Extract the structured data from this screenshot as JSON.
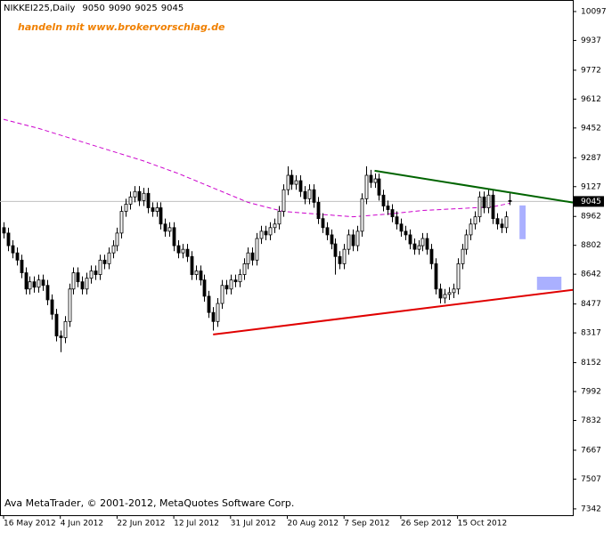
{
  "chart_data": {
    "type": "candlestick",
    "symbol": "NIKKEI225,Daily",
    "watermark": "handeln mit www.brokervorschlag.de",
    "footer": "Ava MetaTrader, © 2001-2012, MetaQuotes Software Corp.",
    "categories": [
      "16 May 2012",
      null,
      null,
      null,
      null,
      null,
      null,
      null,
      null,
      null,
      null,
      null,
      null,
      "4 Jun 2012",
      null,
      null,
      null,
      null,
      null,
      null,
      null,
      null,
      null,
      null,
      null,
      null,
      "22 Jun 2012",
      null,
      null,
      null,
      null,
      null,
      null,
      null,
      null,
      null,
      null,
      null,
      null,
      "12 Jul 2012",
      null,
      null,
      null,
      null,
      null,
      null,
      null,
      null,
      null,
      null,
      null,
      null,
      "31 Jul 2012",
      null,
      null,
      null,
      null,
      null,
      null,
      null,
      null,
      null,
      null,
      null,
      null,
      "20 Aug 2012",
      null,
      null,
      null,
      null,
      null,
      null,
      null,
      null,
      null,
      null,
      null,
      null,
      "7 Sep 2012",
      null,
      null,
      null,
      null,
      null,
      null,
      null,
      null,
      null,
      null,
      null,
      null,
      "26 Sep 2012",
      null,
      null,
      null,
      null,
      null,
      null,
      null,
      null,
      null,
      null,
      null,
      null,
      "15 Oct 2012",
      null,
      null,
      null,
      null,
      null,
      null,
      null,
      null,
      null,
      null,
      null,
      null
    ],
    "ohlc": [
      [
        8900,
        8930,
        8840,
        8870
      ],
      [
        8870,
        8900,
        8770,
        8800
      ],
      [
        8800,
        8830,
        8730,
        8760
      ],
      [
        8760,
        8790,
        8690,
        8720
      ],
      [
        8720,
        8750,
        8620,
        8650
      ],
      [
        8650,
        8680,
        8530,
        8560
      ],
      [
        8560,
        8630,
        8530,
        8600
      ],
      [
        8600,
        8630,
        8540,
        8570
      ],
      [
        8570,
        8640,
        8540,
        8610
      ],
      [
        8610,
        8640,
        8550,
        8580
      ],
      [
        8580,
        8610,
        8470,
        8500
      ],
      [
        8500,
        8530,
        8390,
        8420
      ],
      [
        8420,
        8450,
        8270,
        8300
      ],
      [
        8300,
        8330,
        8210,
        8290
      ],
      [
        8290,
        8410,
        8260,
        8380
      ],
      [
        8380,
        8590,
        8350,
        8560
      ],
      [
        8560,
        8680,
        8530,
        8650
      ],
      [
        8650,
        8680,
        8570,
        8600
      ],
      [
        8600,
        8630,
        8530,
        8560
      ],
      [
        8560,
        8650,
        8530,
        8620
      ],
      [
        8620,
        8690,
        8590,
        8660
      ],
      [
        8660,
        8690,
        8610,
        8640
      ],
      [
        8640,
        8750,
        8610,
        8720
      ],
      [
        8720,
        8750,
        8670,
        8700
      ],
      [
        8700,
        8790,
        8670,
        8760
      ],
      [
        8760,
        8830,
        8730,
        8800
      ],
      [
        8800,
        8900,
        8770,
        8870
      ],
      [
        8870,
        9020,
        8840,
        8990
      ],
      [
        8990,
        9060,
        8960,
        9030
      ],
      [
        9030,
        9100,
        9000,
        9070
      ],
      [
        9070,
        9130,
        9040,
        9100
      ],
      [
        9100,
        9130,
        9020,
        9050
      ],
      [
        9050,
        9120,
        9020,
        9090
      ],
      [
        9090,
        9120,
        8980,
        9010
      ],
      [
        9010,
        9040,
        8960,
        8990
      ],
      [
        8990,
        9040,
        8960,
        9010
      ],
      [
        9010,
        9040,
        8890,
        8920
      ],
      [
        8920,
        8950,
        8850,
        8880
      ],
      [
        8880,
        8930,
        8850,
        8900
      ],
      [
        8900,
        8930,
        8770,
        8800
      ],
      [
        8800,
        8830,
        8730,
        8760
      ],
      [
        8760,
        8810,
        8730,
        8780
      ],
      [
        8780,
        8810,
        8710,
        8740
      ],
      [
        8740,
        8770,
        8610,
        8640
      ],
      [
        8640,
        8690,
        8610,
        8660
      ],
      [
        8660,
        8690,
        8580,
        8610
      ],
      [
        8610,
        8640,
        8490,
        8520
      ],
      [
        8520,
        8550,
        8400,
        8430
      ],
      [
        8430,
        8460,
        8330,
        8380
      ],
      [
        8380,
        8510,
        8350,
        8480
      ],
      [
        8480,
        8610,
        8450,
        8580
      ],
      [
        8580,
        8610,
        8530,
        8560
      ],
      [
        8560,
        8640,
        8530,
        8610
      ],
      [
        8610,
        8640,
        8570,
        8600
      ],
      [
        8600,
        8670,
        8570,
        8640
      ],
      [
        8640,
        8730,
        8610,
        8700
      ],
      [
        8700,
        8790,
        8670,
        8760
      ],
      [
        8760,
        8790,
        8690,
        8720
      ],
      [
        8720,
        8870,
        8690,
        8840
      ],
      [
        8840,
        8910,
        8810,
        8880
      ],
      [
        8880,
        8910,
        8830,
        8860
      ],
      [
        8860,
        8930,
        8830,
        8900
      ],
      [
        8900,
        8950,
        8870,
        8920
      ],
      [
        8920,
        9020,
        8890,
        8990
      ],
      [
        8990,
        9140,
        8960,
        9110
      ],
      [
        9110,
        9240,
        9080,
        9190
      ],
      [
        9190,
        9220,
        9110,
        9140
      ],
      [
        9140,
        9190,
        9110,
        9160
      ],
      [
        9160,
        9190,
        9070,
        9100
      ],
      [
        9100,
        9130,
        9030,
        9060
      ],
      [
        9060,
        9140,
        9030,
        9110
      ],
      [
        9110,
        9140,
        9010,
        9040
      ],
      [
        9040,
        9070,
        8920,
        8950
      ],
      [
        8950,
        8980,
        8870,
        8900
      ],
      [
        8900,
        8930,
        8830,
        8860
      ],
      [
        8860,
        8890,
        8780,
        8810
      ],
      [
        8810,
        8840,
        8640,
        8740
      ],
      [
        8740,
        8770,
        8670,
        8700
      ],
      [
        8700,
        8810,
        8670,
        8780
      ],
      [
        8780,
        8890,
        8750,
        8860
      ],
      [
        8860,
        8890,
        8770,
        8800
      ],
      [
        8800,
        8910,
        8770,
        8880
      ],
      [
        8880,
        9090,
        8850,
        9060
      ],
      [
        9060,
        9240,
        9030,
        9190
      ],
      [
        9190,
        9220,
        9120,
        9150
      ],
      [
        9150,
        9200,
        9120,
        9170
      ],
      [
        9170,
        9200,
        9050,
        9080
      ],
      [
        9080,
        9110,
        8990,
        9020
      ],
      [
        9020,
        9050,
        8970,
        9000
      ],
      [
        9000,
        9030,
        8930,
        8960
      ],
      [
        8960,
        8990,
        8890,
        8920
      ],
      [
        8920,
        8950,
        8850,
        8880
      ],
      [
        8880,
        8910,
        8830,
        8860
      ],
      [
        8860,
        8890,
        8780,
        8810
      ],
      [
        8810,
        8840,
        8750,
        8780
      ],
      [
        8780,
        8830,
        8750,
        8800
      ],
      [
        8800,
        8870,
        8770,
        8840
      ],
      [
        8840,
        8870,
        8750,
        8780
      ],
      [
        8780,
        8810,
        8670,
        8700
      ],
      [
        8700,
        8730,
        8530,
        8560
      ],
      [
        8560,
        8590,
        8480,
        8510
      ],
      [
        8510,
        8560,
        8480,
        8530
      ],
      [
        8530,
        8570,
        8500,
        8540
      ],
      [
        8540,
        8590,
        8510,
        8560
      ],
      [
        8560,
        8730,
        8530,
        8700
      ],
      [
        8700,
        8810,
        8670,
        8780
      ],
      [
        8780,
        8890,
        8750,
        8860
      ],
      [
        8860,
        8950,
        8830,
        8920
      ],
      [
        8920,
        8990,
        8890,
        8960
      ],
      [
        8960,
        9100,
        8930,
        9070
      ],
      [
        9070,
        9100,
        8980,
        9010
      ],
      [
        9010,
        9110,
        8980,
        9080
      ],
      [
        9080,
        9110,
        8920,
        8950
      ],
      [
        8950,
        8980,
        8890,
        8920
      ],
      [
        8920,
        8950,
        8870,
        8900
      ],
      [
        8900,
        8990,
        8870,
        8960
      ],
      [
        9050,
        9090,
        9025,
        9045
      ]
    ],
    "moving_average": {
      "color": "#cc00cc",
      "x": [
        0,
        8,
        16,
        24,
        32,
        40,
        48,
        56,
        64,
        72,
        80,
        88,
        96,
        104,
        112,
        116
      ],
      "values": [
        9500,
        9450,
        9390,
        9330,
        9270,
        9200,
        9120,
        9040,
        8990,
        8975,
        8960,
        8975,
        8995,
        9005,
        9015,
        9035
      ]
    },
    "trendlines": [
      {
        "color": "#006400",
        "x": [
          85,
          132
        ],
        "values": [
          9215,
          9033
        ]
      },
      {
        "color": "#e00000",
        "x": [
          48,
          132
        ],
        "values": [
          8308,
          8560
        ]
      }
    ],
    "boxes": [
      {
        "color": "#aab0ff",
        "x": [
          118.2,
          119.6
        ],
        "values": [
          9023,
          8836
        ]
      },
      {
        "color": "#aab0ff",
        "x": [
          122.2,
          127.8
        ],
        "values": [
          8628,
          8555
        ]
      }
    ],
    "current_price": 9045,
    "ylim": [
      7307,
      10156
    ],
    "yticks": [
      10097,
      9937,
      9772,
      9612,
      9452,
      9287,
      9127,
      8962,
      8802,
      8642,
      8477,
      8317,
      8152,
      7992,
      7832,
      7667,
      7507,
      7342
    ]
  }
}
